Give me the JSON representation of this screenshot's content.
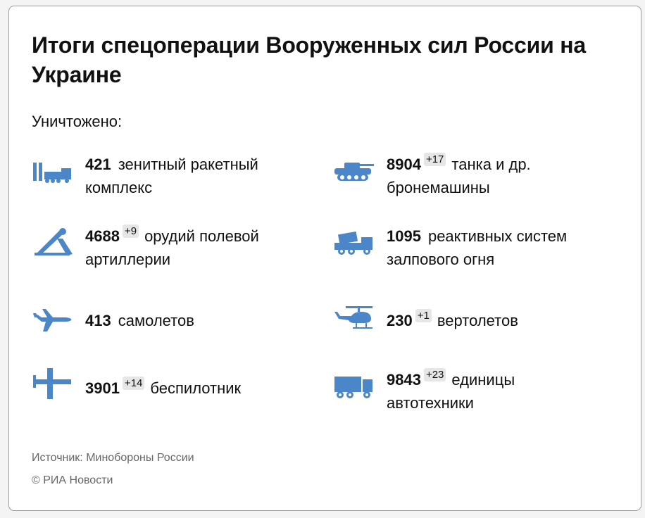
{
  "title": "Итоги спецоперации Вооруженных сил России на Украине",
  "subtitle": "Уничтожено:",
  "accent_color": "#4a86c8",
  "items": [
    {
      "number": "421",
      "delta": "",
      "label_line1": "зенитный ракетный",
      "label_line2": "комплекс",
      "icon": "missile-launcher-icon"
    },
    {
      "number": "8904",
      "delta": "+17",
      "label_line1": "танка и др.",
      "label_line2": "бронемашины",
      "icon": "tank-icon"
    },
    {
      "number": "4688",
      "delta": "+9",
      "label_line1": "орудий полевой",
      "label_line2": "артиллерии",
      "icon": "artillery-icon"
    },
    {
      "number": "1095",
      "delta": "",
      "label_line1": "реактивных систем",
      "label_line2": "залпового огня",
      "icon": "rocket-launcher-truck-icon"
    },
    {
      "number": "413",
      "delta": "",
      "label_line1": "самолетов",
      "label_line2": "",
      "icon": "airplane-icon"
    },
    {
      "number": "230",
      "delta": "+1",
      "label_line1": "вертолетов",
      "label_line2": "",
      "icon": "helicopter-icon"
    },
    {
      "number": "3901",
      "delta": "+14",
      "label_line1": "беспилотник",
      "label_line2": "",
      "icon": "drone-icon"
    },
    {
      "number": "9843",
      "delta": "+23",
      "label_line1": "единицы",
      "label_line2": "автотехники",
      "icon": "truck-icon"
    }
  ],
  "footer": {
    "source": "Источник: Минобороны России",
    "copyright": "© РИА Новости"
  }
}
